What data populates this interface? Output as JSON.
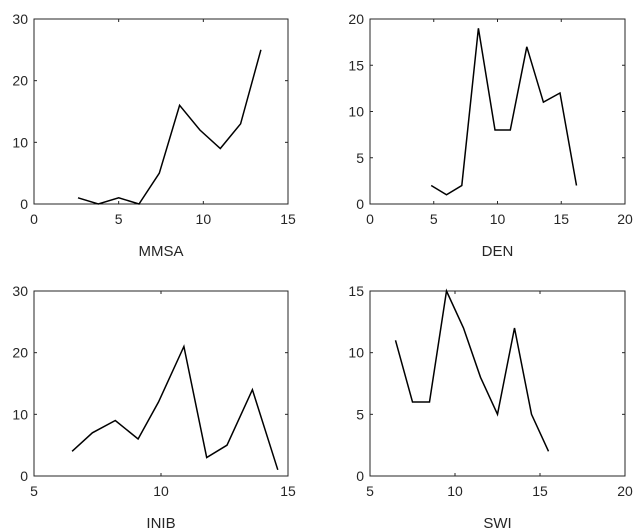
{
  "chart_data": [
    {
      "type": "line",
      "xlabel": "MMSA",
      "xlim": [
        0,
        15
      ],
      "ylim": [
        0,
        30
      ],
      "xticks": [
        0,
        5,
        10,
        15
      ],
      "yticks": [
        0,
        10,
        20,
        30
      ],
      "grid": false,
      "series": [
        {
          "x": [
            2.6,
            3.8,
            5.0,
            6.2,
            7.4,
            8.6,
            9.8,
            11.0,
            12.2,
            13.4
          ],
          "values": [
            1,
            0,
            1,
            0,
            5,
            16,
            12,
            9,
            13,
            25
          ]
        }
      ]
    },
    {
      "type": "line",
      "xlabel": "DEN",
      "xlim": [
        0,
        20
      ],
      "ylim": [
        0,
        20
      ],
      "xticks": [
        0,
        5,
        10,
        15,
        20
      ],
      "yticks": [
        0,
        5,
        10,
        15,
        20
      ],
      "grid": false,
      "series": [
        {
          "x": [
            4.8,
            6.0,
            7.2,
            8.5,
            9.8,
            11.0,
            12.3,
            13.6,
            14.9,
            16.2
          ],
          "values": [
            2,
            1,
            2,
            19,
            8,
            8,
            17,
            11,
            12,
            2
          ]
        }
      ]
    },
    {
      "type": "line",
      "xlabel": "INIB",
      "xlim": [
        5,
        15
      ],
      "ylim": [
        0,
        30
      ],
      "xticks": [
        5,
        10,
        15
      ],
      "yticks": [
        0,
        10,
        20,
        30
      ],
      "grid": false,
      "series": [
        {
          "x": [
            6.5,
            7.3,
            8.2,
            9.1,
            9.9,
            10.9,
            11.8,
            12.6,
            13.6,
            14.6
          ],
          "values": [
            4,
            7,
            9,
            6,
            12,
            21,
            3,
            5,
            14,
            1
          ]
        }
      ]
    },
    {
      "type": "line",
      "xlabel": "SWI",
      "xlim": [
        5,
        20
      ],
      "ylim": [
        0,
        15
      ],
      "xticks": [
        5,
        10,
        15,
        20
      ],
      "yticks": [
        0,
        5,
        10,
        15
      ],
      "grid": false,
      "series": [
        {
          "x": [
            6.5,
            7.5,
            8.5,
            9.5,
            10.5,
            11.5,
            12.5,
            13.5,
            14.5,
            15.5
          ],
          "values": [
            11,
            6,
            6,
            15,
            12,
            8,
            5,
            12,
            5,
            2
          ]
        }
      ]
    }
  ],
  "colors": {
    "line": "#000000",
    "axis": "#262626",
    "background": "#ffffff"
  }
}
